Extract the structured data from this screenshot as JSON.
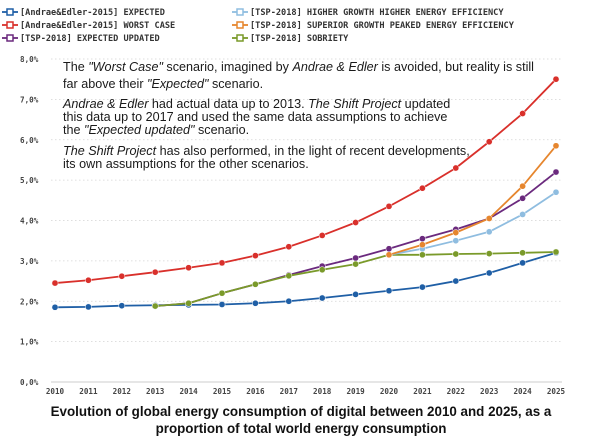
{
  "chart_data": {
    "type": "line",
    "x": [
      2010,
      2011,
      2012,
      2013,
      2014,
      2015,
      2016,
      2017,
      2018,
      2019,
      2020,
      2021,
      2022,
      2023,
      2024,
      2025
    ],
    "ylim": [
      0,
      8
    ],
    "y_ticks": [
      "0,0%",
      "1,0%",
      "2,0%",
      "3,0%",
      "4,0%",
      "5,0%",
      "6,0%",
      "7,0%",
      "8,0%"
    ],
    "x_ticks": [
      "2010",
      "2011",
      "2012",
      "2013",
      "2014",
      "2015",
      "2016",
      "2017",
      "2018",
      "2019",
      "2020",
      "2021",
      "2022",
      "2023",
      "2024",
      "2025"
    ],
    "grid": "horizontal-dotted",
    "title": "",
    "series": [
      {
        "name": "[Andrae&Edler-2015] EXPECTED",
        "color": "#1f5fa6",
        "values": [
          1.85,
          1.86,
          1.89,
          1.9,
          1.91,
          1.92,
          1.95,
          2.0,
          2.08,
          2.17,
          2.26,
          2.35,
          2.5,
          2.7,
          2.95,
          3.2
        ]
      },
      {
        "name": "[Andrae&Edler-2015] WORST CASE",
        "color": "#d9302b",
        "values": [
          2.45,
          2.52,
          2.62,
          2.72,
          2.83,
          2.95,
          3.13,
          3.35,
          3.63,
          3.95,
          4.35,
          4.8,
          5.3,
          5.95,
          6.65,
          7.5
        ]
      },
      {
        "name": "[TSP-2018] EXPECTED UPDATED",
        "color": "#6b2a7e",
        "start_index": 3,
        "values": [
          null,
          null,
          null,
          1.88,
          1.95,
          2.2,
          2.42,
          2.65,
          2.87,
          3.07,
          3.3,
          3.55,
          3.78,
          4.05,
          4.55,
          5.2
        ]
      },
      {
        "name": "[TSP-2018] HIGHER GROWTH HIGHER ENERGY EFFICIENCY",
        "color": "#8fbde0",
        "start_index": 10,
        "values": [
          null,
          null,
          null,
          null,
          null,
          null,
          null,
          null,
          null,
          null,
          3.15,
          3.3,
          3.5,
          3.72,
          4.15,
          4.7
        ]
      },
      {
        "name": "[TSP-2018] SUPERIOR GROWTH PEAKED ENERGY EFFICIENCY",
        "color": "#e6862e",
        "start_index": 10,
        "values": [
          null,
          null,
          null,
          null,
          null,
          null,
          null,
          null,
          null,
          null,
          3.15,
          3.4,
          3.7,
          4.05,
          4.85,
          5.85
        ]
      },
      {
        "name": "[TSP-2018] SOBRIETY",
        "color": "#7a9a2a",
        "start_index": 3,
        "values": [
          null,
          null,
          null,
          1.88,
          1.95,
          2.2,
          2.42,
          2.63,
          2.78,
          2.92,
          3.15,
          3.15,
          3.17,
          3.18,
          3.2,
          3.22
        ]
      }
    ],
    "legend": "top, three rows in two columns",
    "annotations": [
      {
        "parts": [
          {
            "t": "The ",
            "i": false
          },
          {
            "t": "\"Worst Case\"",
            "i": true
          },
          {
            "t": " scenario, imagined by ",
            "i": false
          },
          {
            "t": "Andrae & Edler",
            "i": true
          },
          {
            "t": " is avoided, but reality is still",
            "i": false
          }
        ]
      },
      {
        "parts": [
          {
            "t": "far above their ",
            "i": false
          },
          {
            "t": "\"Expected\"",
            "i": true
          },
          {
            "t": " scenario.",
            "i": false
          }
        ]
      },
      {
        "parts": [
          {
            "t": "Andrae & Edler",
            "i": true
          },
          {
            "t": " had actual data up to 2013. ",
            "i": false
          },
          {
            "t": "The Shift Project",
            "i": true
          },
          {
            "t": " updated",
            "i": false
          }
        ]
      },
      {
        "parts": [
          {
            "t": "this data up to 2017 and used the same data assumptions to achieve",
            "i": false
          }
        ]
      },
      {
        "parts": [
          {
            "t": "the ",
            "i": false
          },
          {
            "t": "\"Expected updated\"",
            "i": true
          },
          {
            "t": " scenario.",
            "i": false
          }
        ]
      },
      {
        "parts": [
          {
            "t": "The Shift Project",
            "i": true
          },
          {
            "t": " has also performed, in the light of recent developments,",
            "i": false
          }
        ]
      },
      {
        "parts": [
          {
            "t": "its own assumptions for the other scenarios.",
            "i": false
          }
        ]
      }
    ]
  },
  "caption": {
    "line1": "Evolution of global energy consumption of digital between 2010 and 2025, as a",
    "line2": "proportion of total world energy consumption"
  }
}
